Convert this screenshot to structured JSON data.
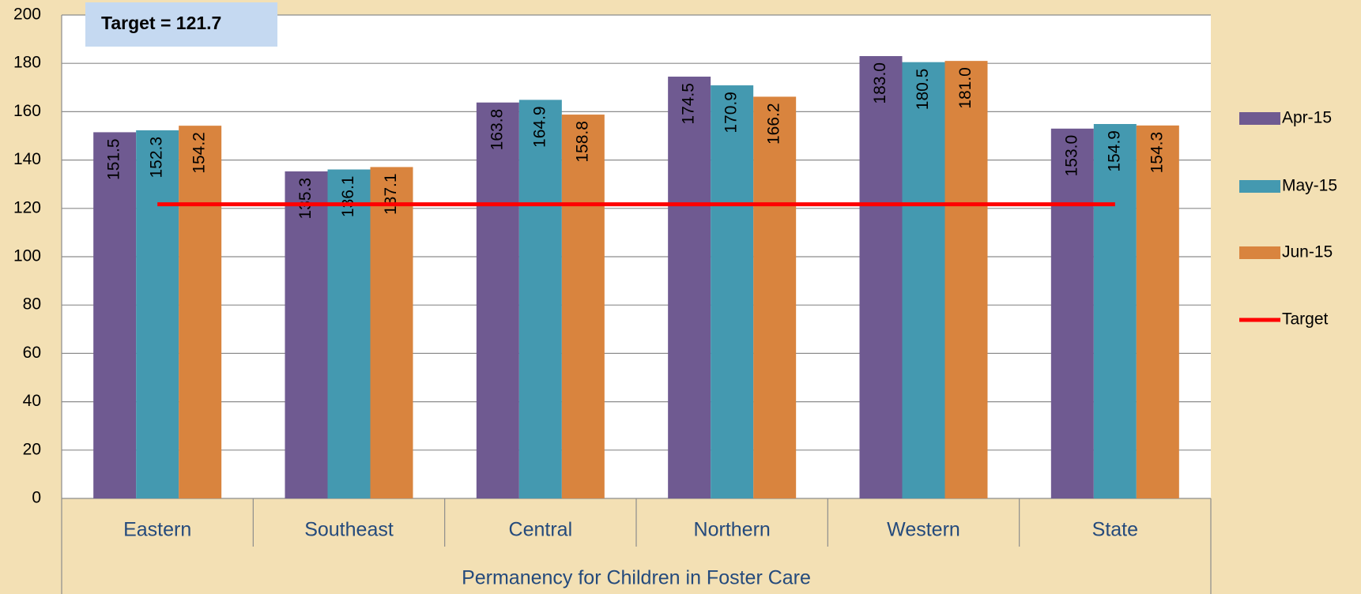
{
  "chart_data": {
    "type": "bar",
    "x_label": "Permanency for Children in Foster Care",
    "annotation": "Target = 121.7",
    "categories": [
      "Eastern",
      "Southeast",
      "Central",
      "Northern",
      "Western",
      "State"
    ],
    "series": [
      {
        "name": "Apr-15",
        "color": "#6f5a91",
        "values": [
          151.5,
          135.3,
          163.8,
          174.5,
          183.0,
          153.0
        ],
        "value_labels": [
          "151.5",
          "135.3",
          "163.8",
          "174.5",
          "183.0",
          "153.0"
        ]
      },
      {
        "name": "May-15",
        "color": "#4499b0",
        "values": [
          152.3,
          136.1,
          164.9,
          170.9,
          180.5,
          154.9
        ],
        "value_labels": [
          "152.3",
          "136.1",
          "164.9",
          "170.9",
          "180.5",
          "154.9"
        ]
      },
      {
        "name": "Jun-15",
        "color": "#d9843e",
        "values": [
          154.2,
          137.1,
          158.8,
          166.2,
          181.0,
          154.3
        ],
        "value_labels": [
          "154.2",
          "137.1",
          "158.8",
          "166.2",
          "181.0",
          "154.3"
        ]
      }
    ],
    "target": {
      "name": "Target",
      "value": 121.7,
      "color": "#ff0000"
    },
    "ylim": [
      0,
      200
    ],
    "yticks": [
      0,
      20,
      40,
      60,
      80,
      100,
      120,
      140,
      160,
      180,
      200
    ],
    "grid": true
  }
}
